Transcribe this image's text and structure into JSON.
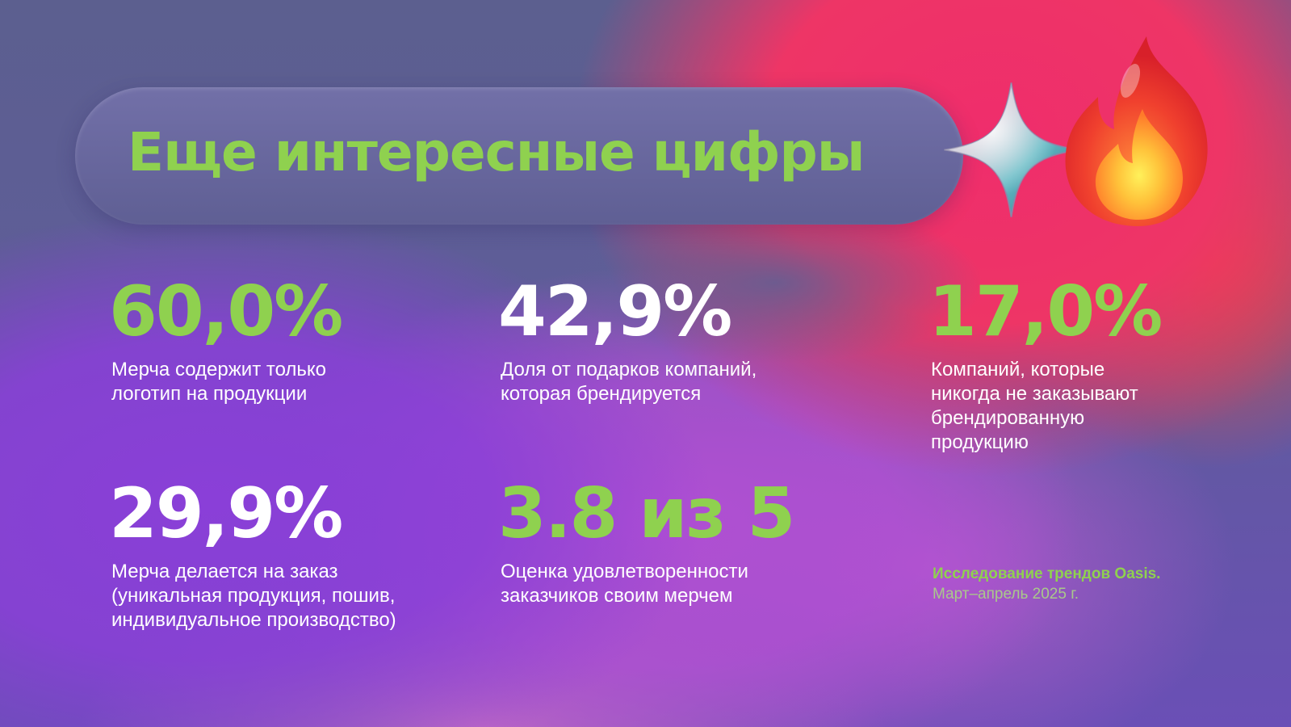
{
  "slide": {
    "title": "Еще интересные цифры",
    "accent_color": "#8fd14f",
    "icons": [
      "sparkle-star-icon",
      "fire-icon"
    ]
  },
  "stats": [
    {
      "value": "60,0%",
      "color": "green",
      "lines": [
        "Мерча содержит только",
        "логотип на продукции"
      ]
    },
    {
      "value": "42,9%",
      "color": "white",
      "lines": [
        "Доля от подарков компаний,",
        "которая брендируется"
      ]
    },
    {
      "value": "17,0%",
      "color": "green",
      "lines": [
        "Компаний, которые",
        "никогда не заказывают",
        "брендированную",
        "продукцию"
      ]
    },
    {
      "value": "29,9%",
      "color": "white",
      "lines": [
        "Мерча делается на заказ",
        "(уникальная продукция, пошив,",
        "индивидуальное производство)"
      ]
    },
    {
      "value": "3.8 из 5",
      "color": "green",
      "lines": [
        "Оценка удовлетворенности",
        "заказчиков своим мерчем"
      ]
    }
  ],
  "source": {
    "line1": "Исследование трендов Oasis.",
    "line2": "Март–апрель 2025 г."
  }
}
